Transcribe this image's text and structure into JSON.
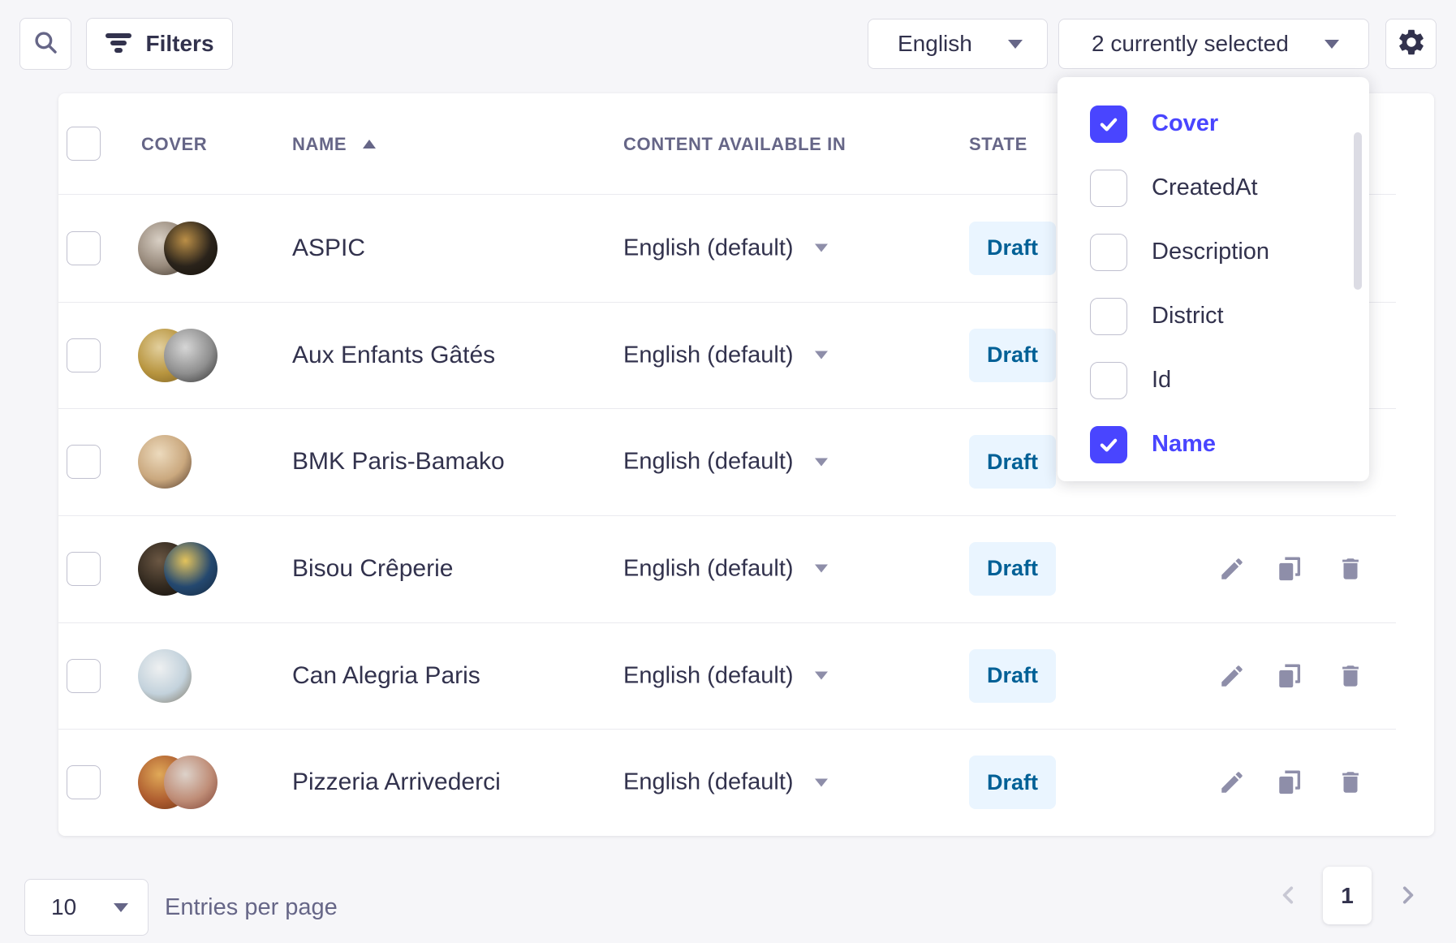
{
  "colors": {
    "accent": "#4945ff",
    "page_bg": "#f6f6f9",
    "badge_bg": "#eaf5ff",
    "badge_text": "#006096",
    "icon_gray": "#8e8ea9",
    "text_dark": "#32324d",
    "text_gray": "#666687"
  },
  "toolbar": {
    "search_icon": "magnifier-icon",
    "filters": {
      "label": "Filters",
      "icon": "filter-icon"
    },
    "locale_select": {
      "value": "English",
      "icon": "chevron-down-icon"
    },
    "columns_select": {
      "value": "2 currently selected",
      "icon": "chevron-down-icon"
    },
    "settings_icon": "gear-icon"
  },
  "columns_dropdown": {
    "items": [
      {
        "label": "Cover",
        "checked": true
      },
      {
        "label": "CreatedAt",
        "checked": false
      },
      {
        "label": "Description",
        "checked": false
      },
      {
        "label": "District",
        "checked": false
      },
      {
        "label": "Id",
        "checked": false
      },
      {
        "label": "Name",
        "checked": true
      }
    ]
  },
  "table": {
    "headers": {
      "cover": "COVER",
      "name": "NAME",
      "content": "CONTENT AVAILABLE IN",
      "state": "STATE"
    },
    "sort": {
      "column": "NAME",
      "direction": "asc"
    },
    "row_actions": [
      "edit-icon",
      "duplicate-icon",
      "delete-icon"
    ],
    "rows": [
      {
        "name": "ASPIC",
        "locale": "English (default)",
        "state": "Draft",
        "avatars": [
          [
            "#d8cfc4",
            "#97897b",
            "#3c342b"
          ],
          [
            "#bb8f47",
            "#2a231b",
            "#141009"
          ]
        ]
      },
      {
        "name": "Aux Enfants Gâtés",
        "locale": "English (default)",
        "state": "Draft",
        "avatars": [
          [
            "#e2cf9d",
            "#b8953f",
            "#7a5e22"
          ],
          [
            "#d6d6d6",
            "#8f8f8f",
            "#2e2e2e"
          ]
        ]
      },
      {
        "name": "BMK Paris-Bamako",
        "locale": "English (default)",
        "state": "Draft",
        "avatars": [
          [
            "#ecdabd",
            "#caa87e",
            "#4e372a"
          ]
        ]
      },
      {
        "name": "Bisou Crêperie",
        "locale": "English (default)",
        "state": "Draft",
        "avatars": [
          [
            "#6b5743",
            "#32291f",
            "#100d0a"
          ],
          [
            "#e3c35c",
            "#24486f",
            "#15293f"
          ]
        ]
      },
      {
        "name": "Can Alegria Paris",
        "locale": "English (default)",
        "state": "Draft",
        "avatars": [
          [
            "#eef0f1",
            "#c3d2dc",
            "#7e7561"
          ]
        ]
      },
      {
        "name": "Pizzeria Arrivederci",
        "locale": "English (default)",
        "state": "Draft",
        "avatars": [
          [
            "#e0a958",
            "#af5e30",
            "#6e3314"
          ],
          [
            "#ddd2ca",
            "#bf8d77",
            "#7e4233"
          ]
        ]
      }
    ]
  },
  "footer": {
    "page_size": {
      "value": "10",
      "icon": "chevron-down-icon"
    },
    "entries_label": "Entries per page",
    "pagination": {
      "prev_icon": "chevron-left-icon",
      "current_page": "1",
      "next_icon": "chevron-right-icon"
    }
  }
}
